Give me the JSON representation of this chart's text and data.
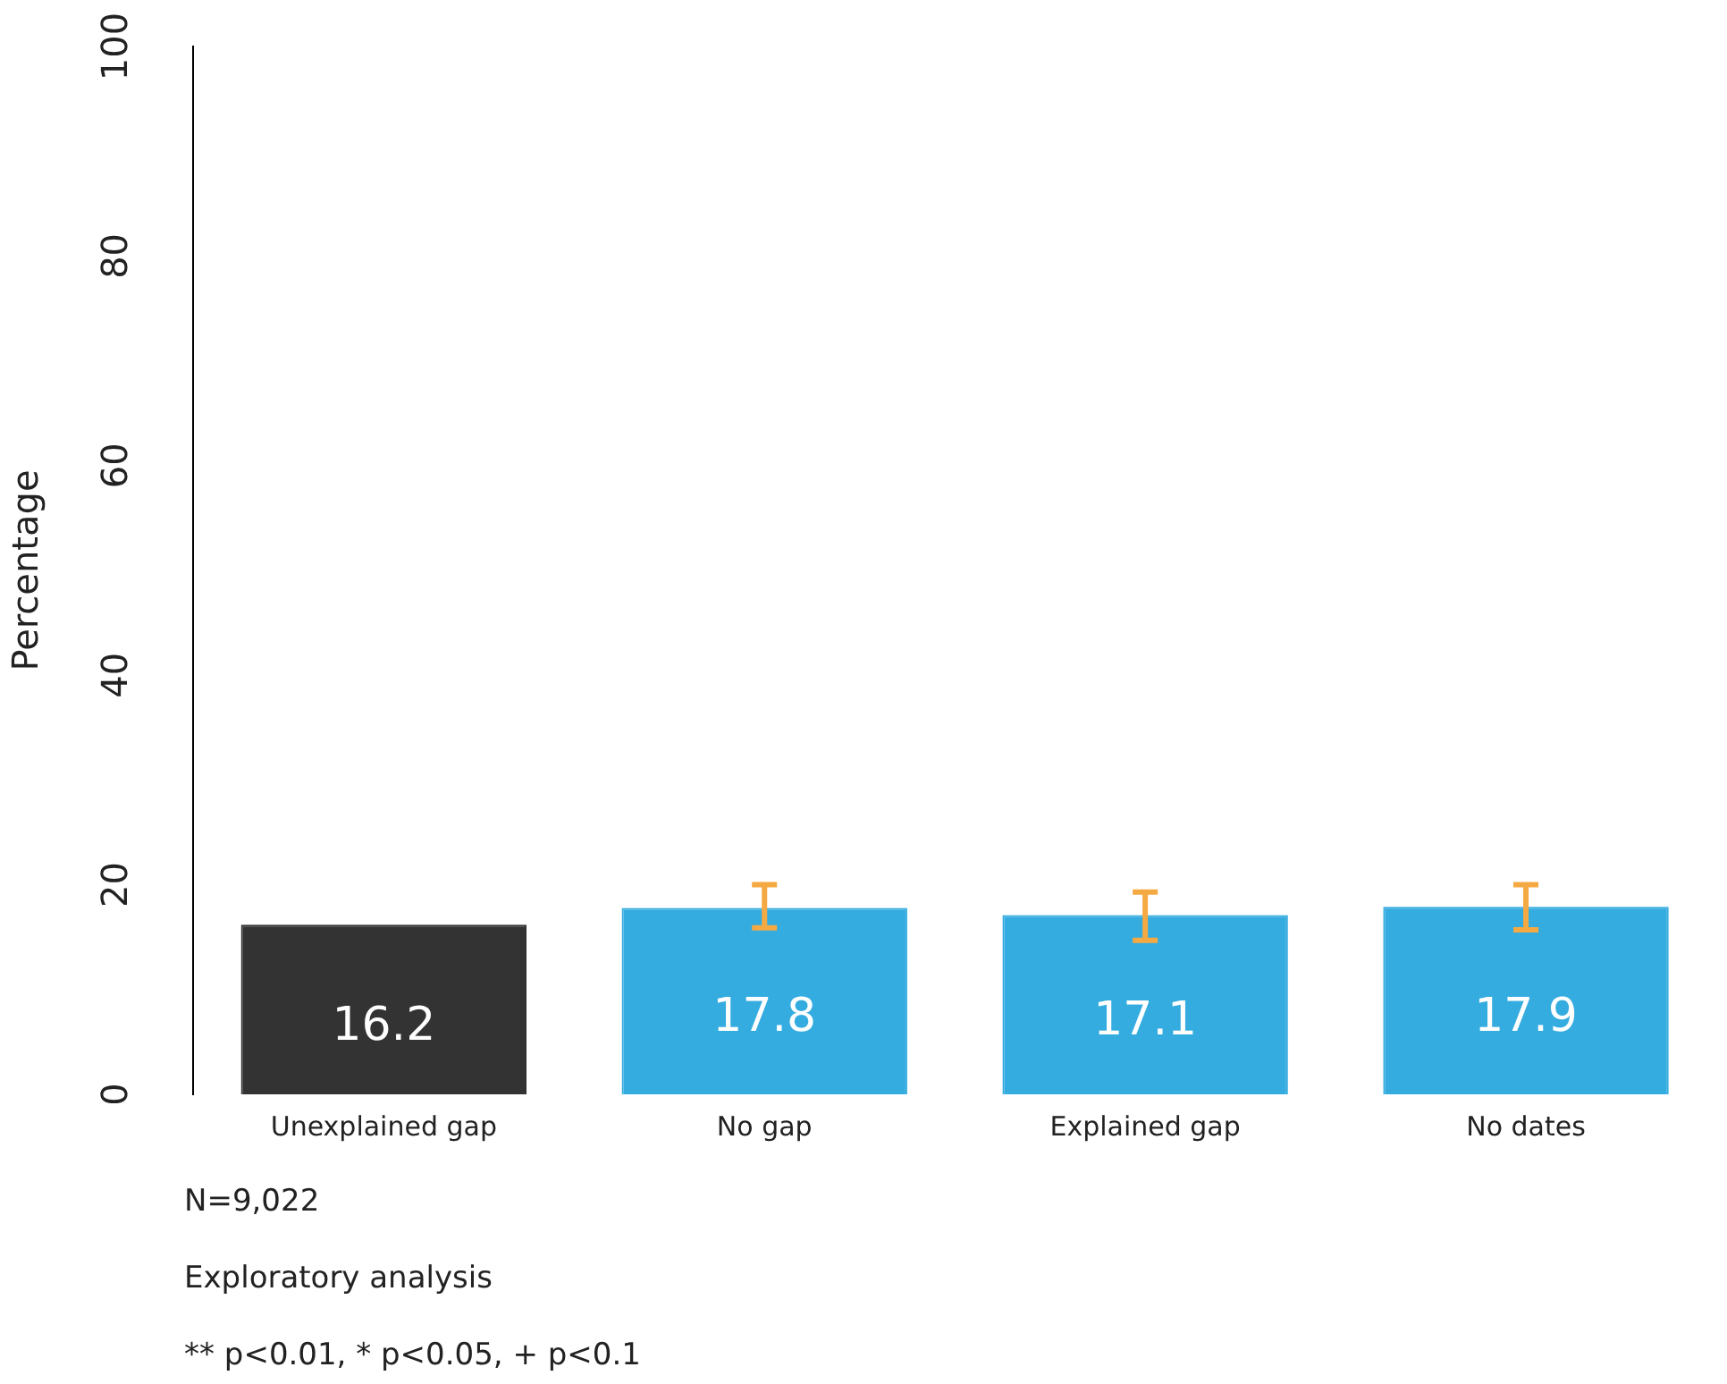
{
  "chart_data": {
    "type": "bar",
    "ylabel": "Percentage",
    "categories": [
      "Unexplained gap",
      "No gap",
      "Explained gap",
      "No dates"
    ],
    "values": [
      16.2,
      17.8,
      17.1,
      17.9
    ],
    "colors": [
      "#333333",
      "#35ace0",
      "#35ace0",
      "#35ace0"
    ],
    "errors": [
      null,
      [
        15.9,
        20.0
      ],
      [
        14.7,
        19.3
      ],
      [
        15.7,
        20.0
      ]
    ],
    "ylim": [
      0,
      100
    ],
    "yticks": [
      0,
      20,
      40,
      60,
      80,
      100
    ],
    "grid": false,
    "legend": false,
    "data_labels": true,
    "annotations": [
      "N=9,022",
      "Exploratory analysis",
      "** p<0.01, * p<0.05, + p<0.1"
    ]
  }
}
